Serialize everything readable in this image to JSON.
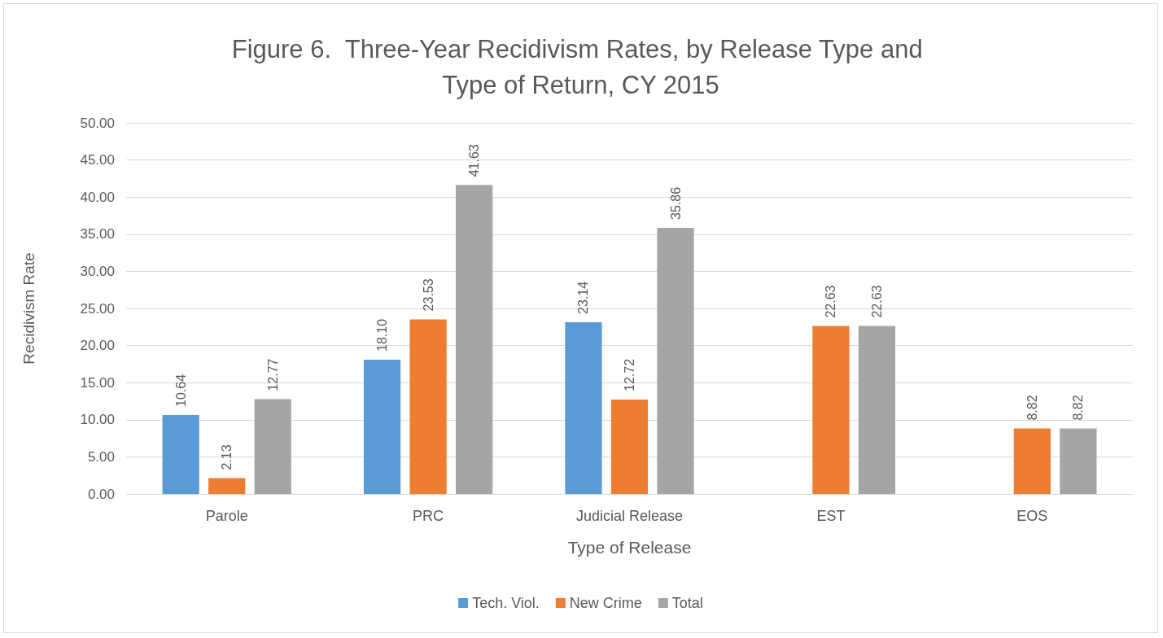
{
  "chart_data": {
    "type": "bar",
    "title": "Figure 6.  Three-Year Recidivism Rates, by Release Type and Type of Return, CY 2015",
    "xlabel": "Type of Release",
    "ylabel": "Recidivism Rate",
    "categories": [
      "Parole",
      "PRC",
      "Judicial Release",
      "EST",
      "EOS"
    ],
    "series": [
      {
        "name": "Tech. Viol.",
        "color": "#5b9bd5",
        "values": [
          10.64,
          18.1,
          23.14,
          null,
          null
        ],
        "value_labels": [
          "10.64",
          "18.10",
          "23.14",
          null,
          null
        ]
      },
      {
        "name": "New Crime",
        "color": "#ed7d31",
        "values": [
          2.13,
          23.53,
          12.72,
          22.63,
          8.82
        ],
        "value_labels": [
          "2.13",
          "23.53",
          "12.72",
          "22.63",
          "8.82"
        ]
      },
      {
        "name": "Total",
        "color": "#a5a5a5",
        "values": [
          12.77,
          41.63,
          35.86,
          22.63,
          8.82
        ],
        "value_labels": [
          "12.77",
          "41.63",
          "35.86",
          "22.63",
          "8.82"
        ]
      }
    ],
    "ylim": [
      0,
      50
    ],
    "yticks": [
      {
        "value": 0,
        "label": "0.00"
      },
      {
        "value": 5,
        "label": "5.00"
      },
      {
        "value": 10,
        "label": "10.00"
      },
      {
        "value": 15,
        "label": "15.00"
      },
      {
        "value": 20,
        "label": "20.00"
      },
      {
        "value": 25,
        "label": "25.00"
      },
      {
        "value": 30,
        "label": "30.00"
      },
      {
        "value": 35,
        "label": "35.00"
      },
      {
        "value": 40,
        "label": "40.00"
      },
      {
        "value": 45,
        "label": "45.00"
      },
      {
        "value": 50,
        "label": "50.00"
      }
    ],
    "grid": "y",
    "legend": "bottom"
  }
}
